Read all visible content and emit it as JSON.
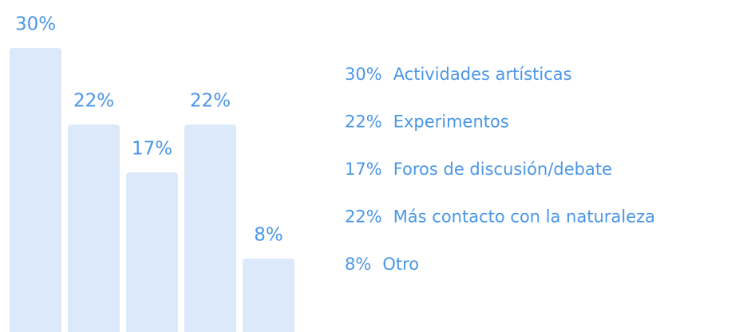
{
  "chart_data": {
    "type": "bar",
    "categories": [
      "Actividades artísticas",
      "Experimentos",
      "Foros de discusión/debate",
      "Más contacto con la naturaleza",
      "Otro"
    ],
    "values": [
      30,
      22,
      17,
      22,
      8
    ],
    "value_labels": [
      "30%",
      "22%",
      "17%",
      "22%",
      "8%"
    ],
    "color": "#dce9fb"
  }
}
